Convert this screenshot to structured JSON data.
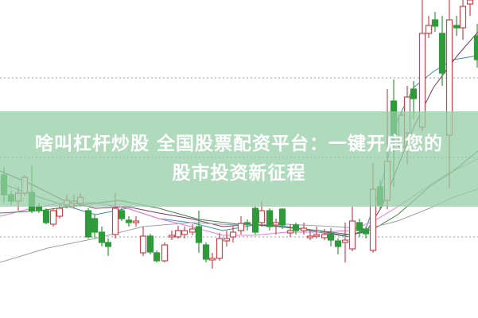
{
  "banner": {
    "line1": "啥叫杠杆炒股 全国股票配资平台：一键开启您的",
    "line2": "股市投资新征程"
  },
  "chart_data": {
    "type": "candlestick",
    "grid": true,
    "up_color": "#c8474f",
    "down_color": "#2f9a3a",
    "ma_colors": [
      "#3a8fa0",
      "#7a3560",
      "#e07ae0",
      "#3d7f4a",
      "#9aa0b0"
    ]
  },
  "colors": {
    "banner_bg": "#a9d8b6",
    "banner_text": "#ffffff",
    "grid": "#999999"
  }
}
